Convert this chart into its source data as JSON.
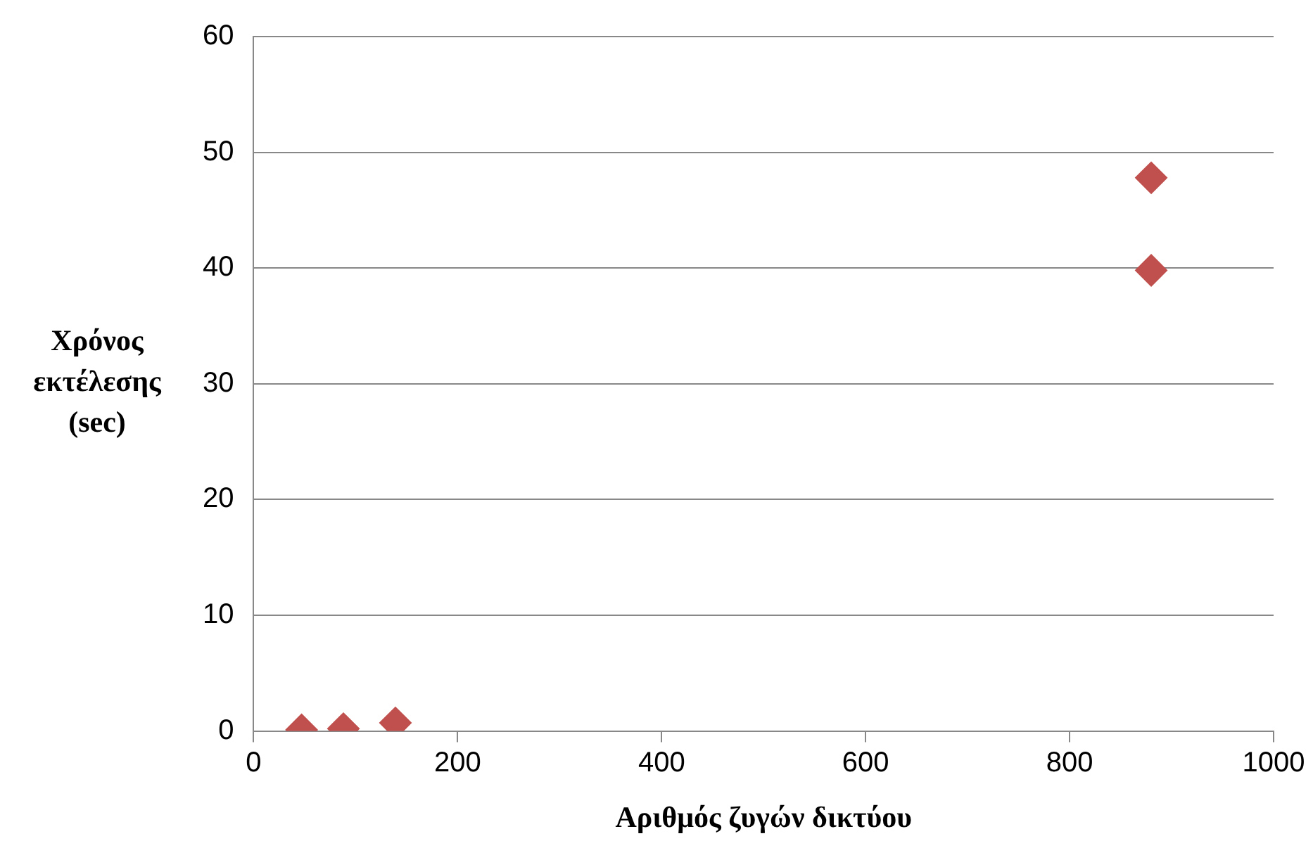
{
  "chart_data": {
    "type": "scatter",
    "xlabel": "Αριθμός ζυγών δικτύου",
    "ylabel": "Χρόνος εκτέλεσης (sec)",
    "series": [
      {
        "color": "#c0504d",
        "x": [
          47,
          88,
          139,
          880,
          880
        ],
        "values": [
          0.1,
          0.2,
          0.7,
          39.8,
          47.8
        ]
      }
    ],
    "xlim": [
      0,
      1000
    ],
    "xticks": [
      0,
      200,
      400,
      600,
      800,
      1000
    ],
    "ylim": [
      0,
      60
    ],
    "yticks": [
      0,
      10,
      20,
      30,
      40,
      50,
      60
    ],
    "grid": "y",
    "legend": false,
    "marker": "diamond"
  }
}
